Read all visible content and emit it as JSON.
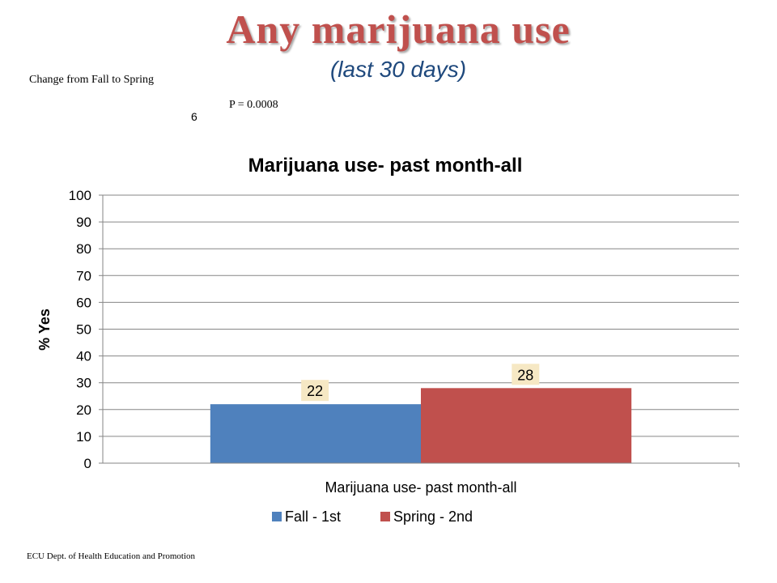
{
  "slide": {
    "title": "Any marijuana use",
    "subtitle": "(last 30 days)",
    "change_note": "Change  from Fall to Spring",
    "p_value": "P = 0.0008",
    "slide_number": "6",
    "footer": "ECU Dept. of Health Education and Promotion"
  },
  "colors": {
    "title": "#c0504d",
    "subtitle": "#1f497d",
    "fall": "#4f81bd",
    "spring": "#c0504d",
    "data_label_bg": "#f6e8c4",
    "gridline": "#868686"
  },
  "chart_data": {
    "type": "bar",
    "title": "Marijuana use- past month-all",
    "xlabel": "",
    "ylabel": "% Yes",
    "categories": [
      "Marijuana use- past month-all"
    ],
    "series": [
      {
        "name": "Fall - 1st",
        "values": [
          22
        ],
        "color": "#4f81bd"
      },
      {
        "name": "Spring - 2nd",
        "values": [
          28
        ],
        "color": "#c0504d"
      }
    ],
    "ylim": [
      0,
      100
    ],
    "yticks": [
      0,
      10,
      20,
      30,
      40,
      50,
      60,
      70,
      80,
      90,
      100
    ],
    "grid": true,
    "legend": "bottom",
    "data_labels": [
      "22",
      "28"
    ]
  }
}
